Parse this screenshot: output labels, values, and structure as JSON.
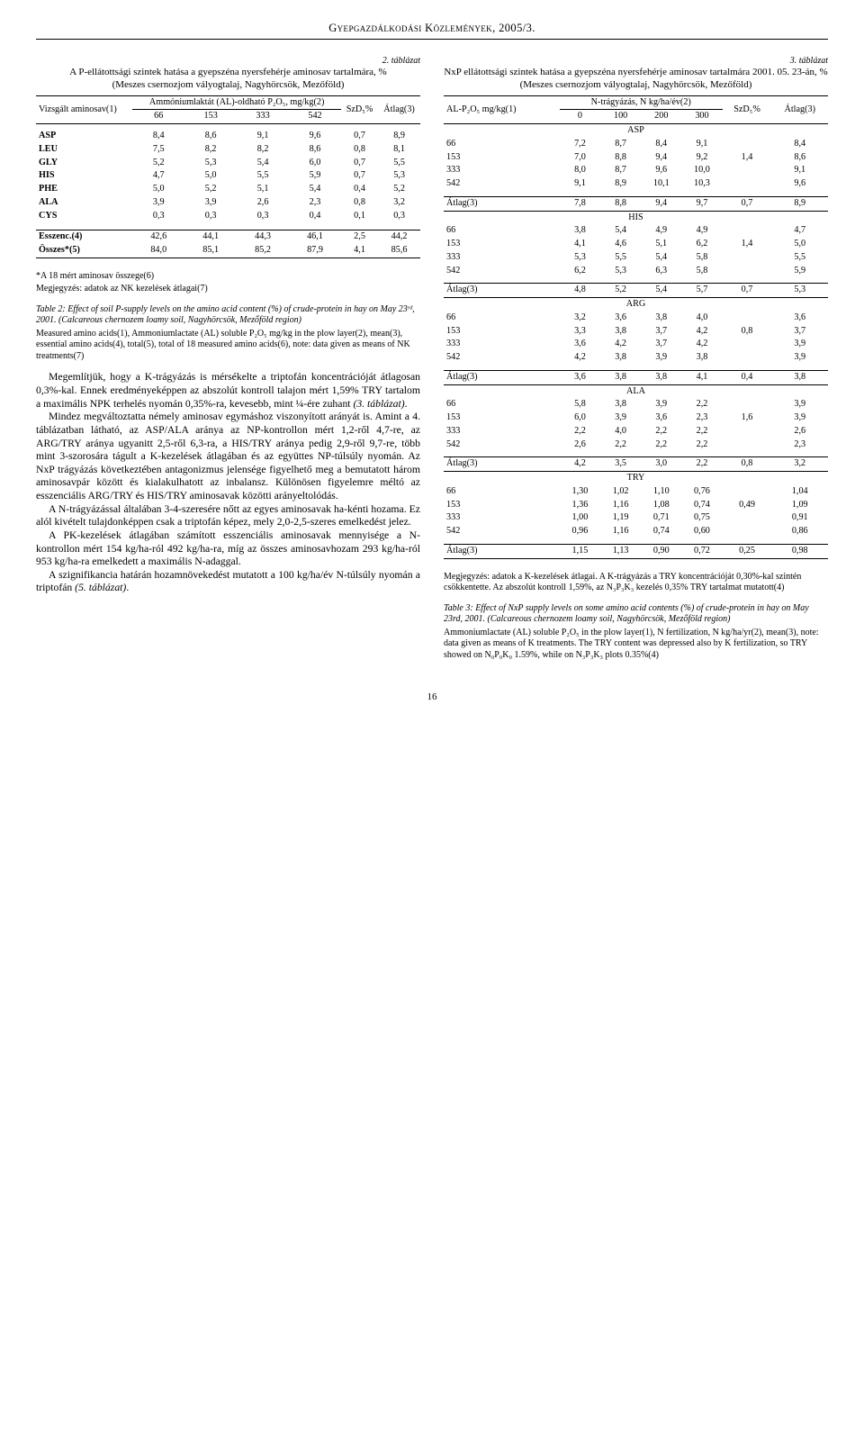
{
  "header": "Gyepgazdálkodási Közlemények, 2005/3.",
  "page_number": "16",
  "table2": {
    "number": "2. táblázat",
    "title": "A P-ellátottsági szintek hatása a gyepszéna nyersfehérje aminosav tartalmára, %",
    "site": "(Meszes csernozjom vályogtalaj, Nagyhörcsök, Mezőföld)",
    "col_group_label": "Ammóniumlaktát (AL)-oldható P₂O₅, mg/kg(2)",
    "row_label": "Vizsgált aminosav(1)",
    "levels": [
      "66",
      "153",
      "333",
      "542"
    ],
    "extra_cols": [
      "SzD₅%",
      "Átlag(3)"
    ],
    "rows": [
      {
        "name": "ASP",
        "v": [
          "8,4",
          "8,6",
          "9,1",
          "9,6",
          "0,7",
          "8,9"
        ]
      },
      {
        "name": "LEU",
        "v": [
          "7,5",
          "8,2",
          "8,2",
          "8,6",
          "0,8",
          "8,1"
        ]
      },
      {
        "name": "GLY",
        "v": [
          "5,2",
          "5,3",
          "5,4",
          "6,0",
          "0,7",
          "5,5"
        ]
      },
      {
        "name": "HIS",
        "v": [
          "4,7",
          "5,0",
          "5,5",
          "5,9",
          "0,7",
          "5,3"
        ]
      },
      {
        "name": "PHE",
        "v": [
          "5,0",
          "5,2",
          "5,1",
          "5,4",
          "0,4",
          "5,2"
        ]
      },
      {
        "name": "ALA",
        "v": [
          "3,9",
          "3,9",
          "2,6",
          "2,3",
          "0,8",
          "3,2"
        ]
      },
      {
        "name": "CYS",
        "v": [
          "0,3",
          "0,3",
          "0,3",
          "0,4",
          "0,1",
          "0,3"
        ]
      }
    ],
    "summary": [
      {
        "name": "Esszenc.(4)",
        "v": [
          "42,6",
          "44,1",
          "44,3",
          "46,1",
          "2,5",
          "44,2"
        ]
      },
      {
        "name": "Összes*(5)",
        "v": [
          "84,0",
          "85,1",
          "85,2",
          "87,9",
          "4,1",
          "85,6"
        ]
      }
    ],
    "foot1": "*A 18 mért aminosav összege(6)",
    "foot2": "Megjegyzés: adatok az NK kezelések átlagai(7)",
    "caption_en": "Table 2: Effect of soil P-supply levels on the amino acid content (%) of crude-protein in hay on May 23ʳᵈ, 2001. (Calcareous chernozem loamy soil, Nagyhörcsök, Mezőföld region)",
    "caption_en2": "Measured amino acids(1), Ammoniumlactate (AL) soluble P₂O₅ mg/kg in the plow layer(2), mean(3), essential amino acids(4), total(5), total of 18 measured amino acids(6), note: data given as means of NK treatments(7)"
  },
  "paragraphs": [
    "Megemlítjük, hogy a K-trágyázás is mérsékelte a triptofán koncentrációját átlagosan 0,3%-kal. Ennek eredményeképpen az abszolút kontroll talajon mért 1,59% TRY tartalom a maximális NPK terhelés nyomán 0,35%-ra, kevesebb, mint ¼-ére zuhant (3. táblázat).",
    "Mindez megváltoztatta némely aminosav egymáshoz viszonyított arányát is. Amint a 4. táblázatban látható, az ASP/ALA aránya az NP-kontrollon mért 1,2-ről 4,7-re, az ARG/TRY aránya ugyanitt 2,5-ről 6,3-ra, a HIS/TRY aránya pedig 2,9-ről 9,7-re, több mint 3-szorosára tágult a K-kezelések átlagában és az együttes NP-túlsúly nyomán. Az NxP trágyázás következtében antagonizmus jelensége figyelhető meg a bemutatott három aminosavpár között és kialakulhatott az inbalansz. Különösen figyelemre méltó az esszenciális ARG/TRY és HIS/TRY aminosavak közötti arányeltolódás.",
    "A N-trágyázással általában 3-4-szeresére nőtt az egyes aminosavak ha-kénti hozama. Ez alól kivételt tulajdonképpen csak a triptofán képez, mely 2,0-2,5-szeres emelkedést jelez.",
    "A PK-kezelések átlagában számított esszenciális aminosavak mennyisége a N-kontrollon mért 154 kg/ha-ról 492 kg/ha-ra, míg az összes aminosavhozam 293 kg/ha-ról 953 kg/ha-ra emelkedett a maximális N-adaggal.",
    "A szignifikancia határán hozamnövekedést mutatott a 100 kg/ha/év N-túlsúly nyomán a triptofán (5. táblázat)."
  ],
  "table3": {
    "number": "3. táblázat",
    "title": "NxP ellátottsági szintek hatása a gyepszéna nyersfehérje aminosav tartalmára 2001. 05. 23-án, %",
    "site": "(Meszes csernozjom vályogtalaj, Nagyhörcsök, Mezőföld)",
    "left_label": "AL-P₂O₅ mg/kg(1)",
    "group_label": "N-trágyázás, N kg/ha/év(2)",
    "n_levels": [
      "0",
      "100",
      "200",
      "300"
    ],
    "extra_cols": [
      "SzD₅%",
      "Átlag(3)"
    ],
    "sections": [
      {
        "name": "ASP",
        "rows": [
          {
            "p": "66",
            "v": [
              "7,2",
              "8,7",
              "8,4",
              "9,1",
              "",
              "8,4"
            ]
          },
          {
            "p": "153",
            "v": [
              "7,0",
              "8,8",
              "9,4",
              "9,2",
              "1,4",
              "8,6"
            ]
          },
          {
            "p": "333",
            "v": [
              "8,0",
              "8,7",
              "9,6",
              "10,0",
              "",
              "9,1"
            ]
          },
          {
            "p": "542",
            "v": [
              "9,1",
              "8,9",
              "10,1",
              "10,3",
              "",
              "9,6"
            ]
          }
        ],
        "mean": [
          "7,8",
          "8,8",
          "9,4",
          "9,7",
          "0,7",
          "8,9"
        ]
      },
      {
        "name": "HIS",
        "rows": [
          {
            "p": "66",
            "v": [
              "3,8",
              "5,4",
              "4,9",
              "4,9",
              "",
              "4,7"
            ]
          },
          {
            "p": "153",
            "v": [
              "4,1",
              "4,6",
              "5,1",
              "6,2",
              "1,4",
              "5,0"
            ]
          },
          {
            "p": "333",
            "v": [
              "5,3",
              "5,5",
              "5,4",
              "5,8",
              "",
              "5,5"
            ]
          },
          {
            "p": "542",
            "v": [
              "6,2",
              "5,3",
              "6,3",
              "5,8",
              "",
              "5,9"
            ]
          }
        ],
        "mean": [
          "4,8",
          "5,2",
          "5,4",
          "5,7",
          "0,7",
          "5,3"
        ]
      },
      {
        "name": "ARG",
        "rows": [
          {
            "p": "66",
            "v": [
              "3,2",
              "3,6",
              "3,8",
              "4,0",
              "",
              "3,6"
            ]
          },
          {
            "p": "153",
            "v": [
              "3,3",
              "3,8",
              "3,7",
              "4,2",
              "0,8",
              "3,7"
            ]
          },
          {
            "p": "333",
            "v": [
              "3,6",
              "4,2",
              "3,7",
              "4,2",
              "",
              "3,9"
            ]
          },
          {
            "p": "542",
            "v": [
              "4,2",
              "3,8",
              "3,9",
              "3,8",
              "",
              "3,9"
            ]
          }
        ],
        "mean": [
          "3,6",
          "3,8",
          "3,8",
          "4,1",
          "0,4",
          "3,8"
        ]
      },
      {
        "name": "ALA",
        "rows": [
          {
            "p": "66",
            "v": [
              "5,8",
              "3,8",
              "3,9",
              "2,2",
              "",
              "3,9"
            ]
          },
          {
            "p": "153",
            "v": [
              "6,0",
              "3,9",
              "3,6",
              "2,3",
              "1,6",
              "3,9"
            ]
          },
          {
            "p": "333",
            "v": [
              "2,2",
              "4,0",
              "2,2",
              "2,2",
              "",
              "2,6"
            ]
          },
          {
            "p": "542",
            "v": [
              "2,6",
              "2,2",
              "2,2",
              "2,2",
              "",
              "2,3"
            ]
          }
        ],
        "mean": [
          "4,2",
          "3,5",
          "3,0",
          "2,2",
          "0,8",
          "3,2"
        ]
      },
      {
        "name": "TRY",
        "rows": [
          {
            "p": "66",
            "v": [
              "1,30",
              "1,02",
              "1,10",
              "0,76",
              "",
              "1,04"
            ]
          },
          {
            "p": "153",
            "v": [
              "1,36",
              "1,16",
              "1,08",
              "0,74",
              "0,49",
              "1,09"
            ]
          },
          {
            "p": "333",
            "v": [
              "1,00",
              "1,19",
              "0,71",
              "0,75",
              "",
              "0,91"
            ]
          },
          {
            "p": "542",
            "v": [
              "0,96",
              "1,16",
              "0,74",
              "0,60",
              "",
              "0,86"
            ]
          }
        ],
        "mean": [
          "1,15",
          "1,13",
          "0,90",
          "0,72",
          "0,25",
          "0,98"
        ]
      }
    ],
    "mean_label": "Átlag(3)",
    "foot": "Megjegyzés: adatok a K-kezelések átlagai. A K-trágyázás a TRY koncentrációját 0,30%-kal szintén csökkentette. Az abszolút kontroll 1,59%, az N₃P₃K₃ kezelés 0,35% TRY tartalmat mutatott(4)",
    "caption_en": "Table 3: Effect of NxP supply levels on some amino acid contents (%) of crude-protein in hay on May 23rd, 2001. (Calcareous chernozem loamy soil, Nagyhörcsök, Mezőföld region)",
    "caption_en2": "Ammoniumlactate (AL) soluble P₂O₅ in the plow layer(1), N fertilization, N kg/ha/yr(2), mean(3), note: data given as means of K treatments. The TRY content was depressed also by K fertilization, so TRY showed on N₀P₀K₀ 1.59%, while on N₃P₃K₃ plots 0.35%(4)"
  }
}
